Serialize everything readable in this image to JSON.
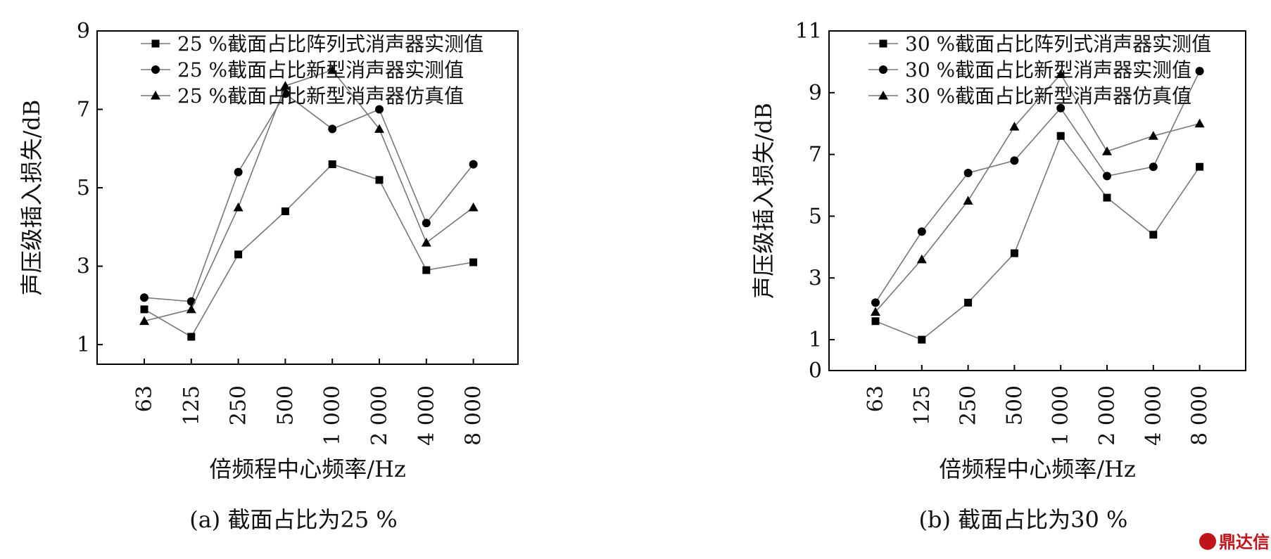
{
  "chart_data": [
    {
      "type": "line",
      "caption": "(a) 截面占比为25 %",
      "xlabel": "倍频程中心频率/Hz",
      "ylabel": "声压级插入损失/dB",
      "categories": [
        "63",
        "125",
        "250",
        "500",
        "1 000",
        "2 000",
        "4 000",
        "8 000"
      ],
      "ylim": [
        0.5,
        9
      ],
      "yticks": [
        1,
        3,
        5,
        7,
        9
      ],
      "legend_position": "top",
      "series": [
        {
          "name": "25 %截面占比阵列式消声器实测值",
          "marker": "square",
          "values": [
            1.9,
            1.2,
            3.3,
            4.4,
            5.6,
            5.2,
            2.9,
            3.1
          ]
        },
        {
          "name": "25 %截面占比新型消声器实测值",
          "marker": "circle",
          "values": [
            2.2,
            2.1,
            5.4,
            7.4,
            6.5,
            7.0,
            4.1,
            5.6
          ]
        },
        {
          "name": "25 %截面占比新型消声器仿真值",
          "marker": "triangle",
          "values": [
            1.6,
            1.9,
            4.5,
            7.6,
            8.0,
            6.5,
            3.6,
            4.5
          ]
        }
      ]
    },
    {
      "type": "line",
      "caption": "(b) 截面占比为30 %",
      "xlabel": "倍频程中心频率/Hz",
      "ylabel": "声压级插入损失/dB",
      "categories": [
        "63",
        "125",
        "250",
        "500",
        "1 000",
        "2 000",
        "4 000",
        "8 000"
      ],
      "ylim": [
        0,
        11
      ],
      "yticks": [
        0,
        1,
        3,
        5,
        7,
        9,
        11
      ],
      "legend_position": "top",
      "series": [
        {
          "name": "30 %截面占比阵列式消声器实测值",
          "marker": "square",
          "values": [
            1.6,
            1.0,
            2.2,
            3.8,
            7.6,
            5.6,
            4.4,
            6.6
          ]
        },
        {
          "name": "30 %截面占比新型消声器实测值",
          "marker": "circle",
          "values": [
            2.2,
            4.5,
            6.4,
            6.8,
            8.5,
            6.3,
            6.6,
            9.7
          ]
        },
        {
          "name": "30 %截面占比新型消声器仿真值",
          "marker": "triangle",
          "values": [
            1.9,
            3.6,
            5.5,
            7.9,
            9.6,
            7.1,
            7.6,
            8.0
          ]
        }
      ]
    }
  ],
  "watermark": "鼎达信"
}
